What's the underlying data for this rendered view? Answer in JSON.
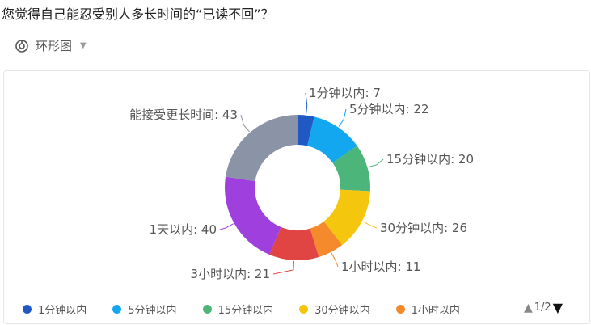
{
  "question": "您觉得自己能忍受别人多长时间的“已读不回”？",
  "chart_selector": {
    "label": "环形图",
    "icon": "donut-chart-icon"
  },
  "chart_data": {
    "type": "pie",
    "variant": "donut",
    "title": "",
    "categories": [
      "1分钟以内",
      "5分钟以内",
      "15分钟以内",
      "30分钟以内",
      "1小时以内",
      "3小时以内",
      "1天以内",
      "能接受更长时间"
    ],
    "values": [
      7,
      22,
      20,
      26,
      11,
      21,
      40,
      43
    ],
    "colors": [
      "#2059c3",
      "#13a7f0",
      "#4cb57a",
      "#f5c60e",
      "#f58a2c",
      "#e14543",
      "#9e3fde",
      "#8a94a6"
    ],
    "data_labels": [
      "1分钟以内: 7",
      "5分钟以内: 22",
      "15分钟以内: 20",
      "30分钟以内: 26",
      "1小时以内: 11",
      "3小时以内: 21",
      "1天以内: 40",
      "能接受更长时间: 43"
    ],
    "legend_placement": "bottom"
  },
  "legend": {
    "items": [
      {
        "label": "1分钟以内",
        "color": "#2059c3"
      },
      {
        "label": "5分钟以内",
        "color": "#13a7f0"
      },
      {
        "label": "15分钟以内",
        "color": "#4cb57a"
      },
      {
        "label": "30分钟以内",
        "color": "#f5c60e"
      },
      {
        "label": "1小时以内",
        "color": "#f58a2c"
      }
    ],
    "page": "1/2"
  }
}
